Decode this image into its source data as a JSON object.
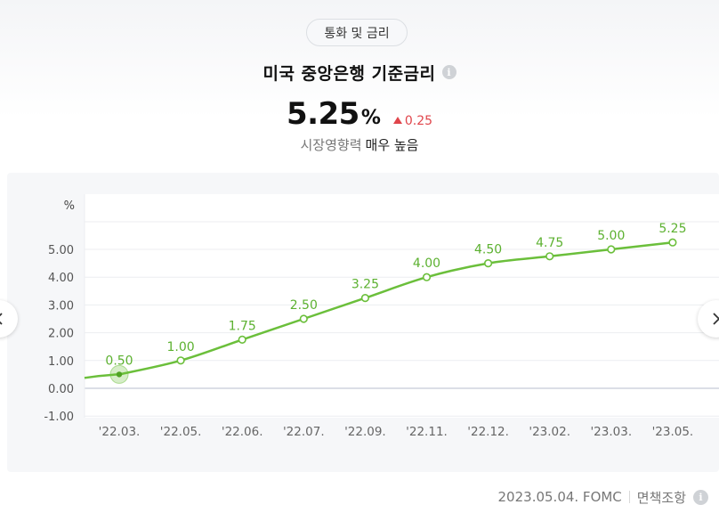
{
  "header": {
    "category": "통화 및 금리",
    "title": "미국 중앙은행 기준금리",
    "value": "5.25",
    "unit": "%",
    "change": "0.25",
    "impact_label": "시장영향력",
    "impact_value": "매우 높음"
  },
  "footer": {
    "date_source": "2023.05.04. FOMC",
    "disclaimer": "면책조항"
  },
  "colors": {
    "line": "#6bbf3b",
    "up": "#e0454b",
    "label": "#5cb130"
  },
  "chart_data": {
    "type": "line",
    "ylabel": "%",
    "ylim": [
      -1.0,
      5.8
    ],
    "yticks": [
      "5.00",
      "4.00",
      "3.00",
      "2.00",
      "1.00",
      "0.00",
      "-1.00"
    ],
    "categories": [
      "'22.03.",
      "'22.05.",
      "'22.06.",
      "'22.07.",
      "'22.09.",
      "'22.11.",
      "'22.12.",
      "'23.02.",
      "'23.03.",
      "'23.05."
    ],
    "values": [
      0.5,
      1.0,
      1.75,
      2.5,
      3.25,
      4.0,
      4.5,
      4.75,
      5.0,
      5.25
    ],
    "labels": [
      "0.50",
      "1.00",
      "1.75",
      "2.50",
      "3.25",
      "4.00",
      "4.50",
      "4.75",
      "5.00",
      "5.25"
    ],
    "prior_value": 0.375,
    "highlighted_index": 0,
    "grid": true
  }
}
